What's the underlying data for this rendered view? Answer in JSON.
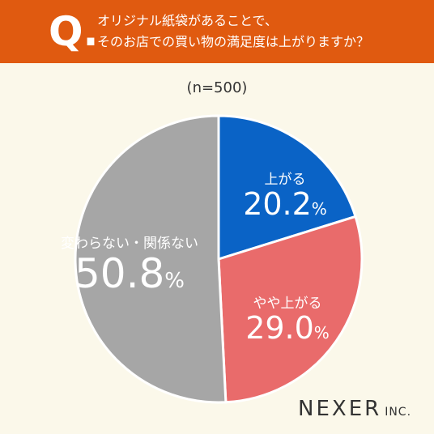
{
  "header": {
    "q_mark": "Q",
    "q_dot": ".",
    "question_line1": "オリジナル紙袋があることで、",
    "question_line2": "そのお店での買い物の満足度は上がりますか？",
    "background": "#e05a10"
  },
  "sample_label": "(n=500)",
  "chart_data": {
    "type": "pie",
    "title": "オリジナル紙袋があることで、そのお店での買い物の満足度は上がりますか？",
    "subtitle": "(n=500)",
    "start": "12 o'clock, clockwise",
    "slices": [
      {
        "label": "上がる",
        "value": 20.2,
        "value_text": "20.2",
        "unit": "%",
        "color": "#0a63c6"
      },
      {
        "label": "やや上がる",
        "value": 29.0,
        "value_text": "29.0",
        "unit": "%",
        "color": "#e96b6b"
      },
      {
        "label": "変わらない・関係ない",
        "value": 50.8,
        "value_text": "50.8",
        "unit": "%",
        "color": "#a6a6a6"
      }
    ]
  },
  "logo": {
    "main": "NEXER",
    "suffix": "INC."
  }
}
